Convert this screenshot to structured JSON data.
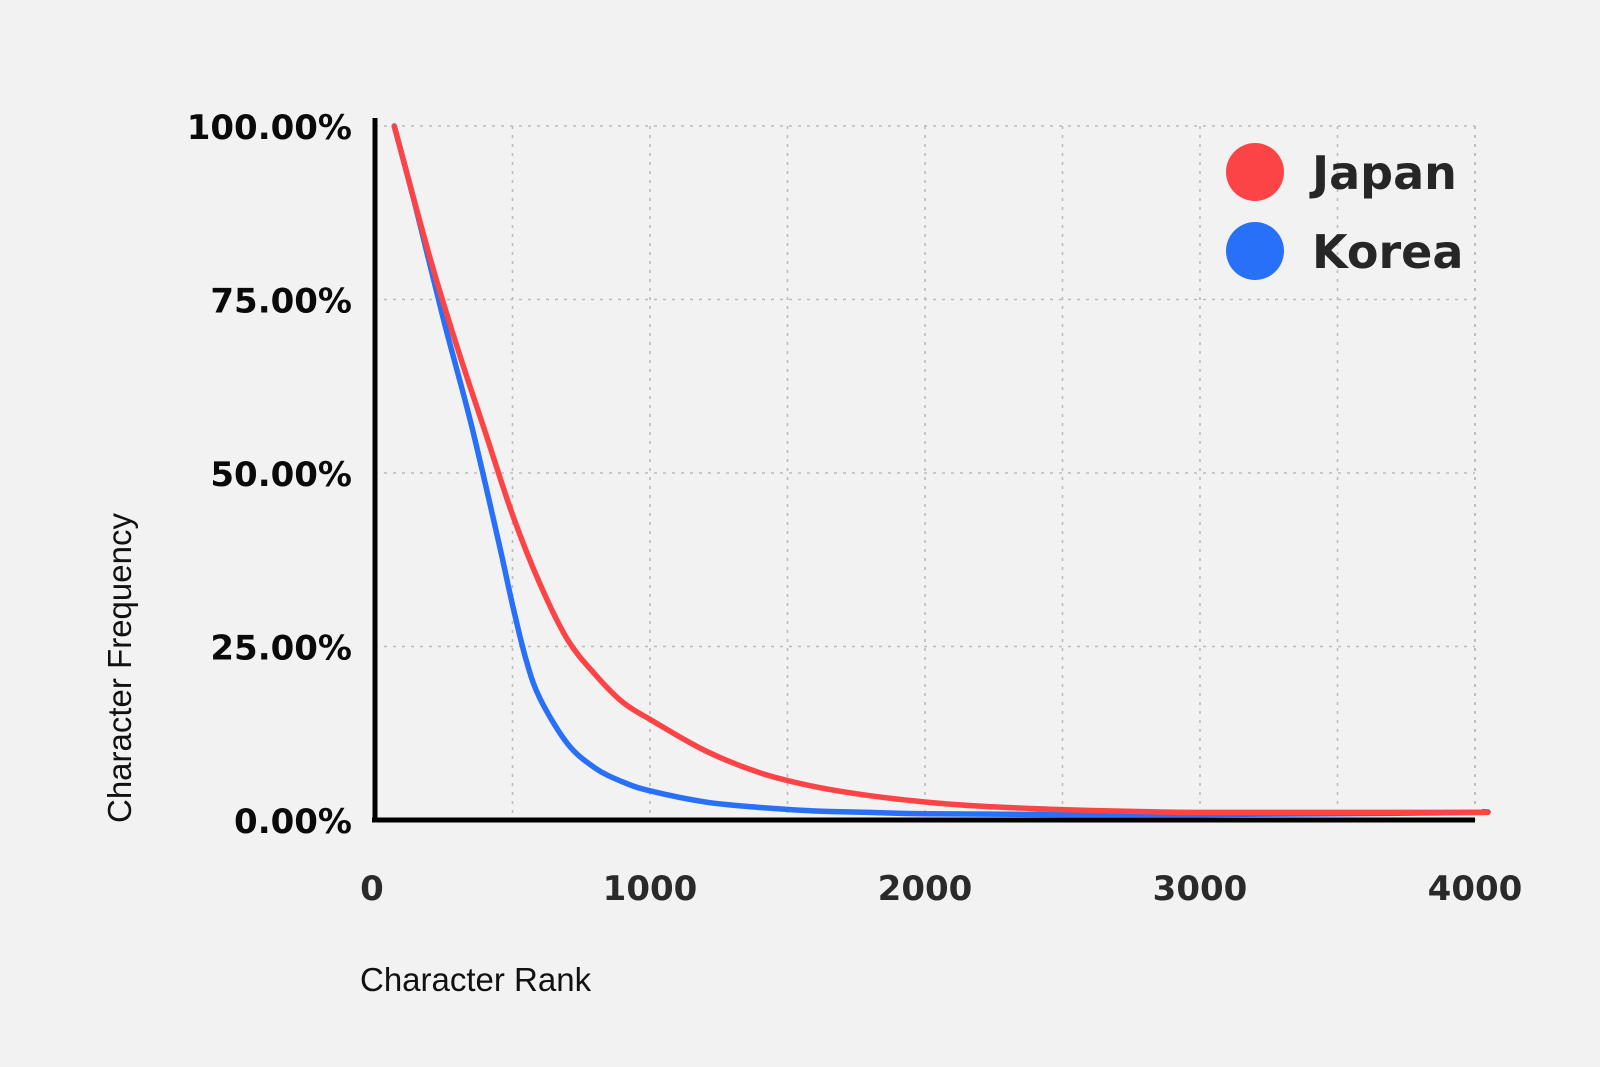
{
  "chart_data": {
    "type": "line",
    "title": "",
    "xlabel": "Character Rank",
    "ylabel": "Character Frequency",
    "xlim": [
      0,
      4000
    ],
    "ylim": [
      0,
      100
    ],
    "x_ticks": [
      "0",
      "1000",
      "2000",
      "3000",
      "4000"
    ],
    "y_ticks": [
      "0.00%",
      "25.00%",
      "50.00%",
      "75.00%",
      "100.00%"
    ],
    "grid": true,
    "legend_position": "top-right",
    "series": [
      {
        "name": "Japan",
        "color": "#fc4447",
        "x": [
          70,
          200,
          300,
          400,
          500,
          600,
          700,
          800,
          900,
          1000,
          1200,
          1400,
          1600,
          1800,
          2000,
          2200,
          2500,
          2800,
          3000,
          3500,
          4000,
          4030
        ],
        "y": [
          100,
          81,
          68,
          56,
          44,
          34,
          26,
          21,
          17,
          14.5,
          10,
          6.8,
          4.8,
          3.5,
          2.6,
          2,
          1.5,
          1.2,
          1.1,
          1.1,
          1.1,
          1.1
        ]
      },
      {
        "name": "Korea",
        "color": "#2870f8",
        "x": [
          70,
          150,
          250,
          350,
          450,
          500,
          550,
          600,
          700,
          800,
          900,
          1000,
          1200,
          1400,
          1600,
          1800,
          2000,
          2500,
          3000,
          3500,
          4000,
          4030
        ],
        "y": [
          100,
          88,
          72,
          57,
          40,
          31,
          23,
          17.5,
          11,
          7.5,
          5.5,
          4.2,
          2.6,
          1.8,
          1.3,
          1.1,
          0.9,
          0.8,
          0.8,
          0.9,
          1.1,
          1.2
        ]
      }
    ]
  }
}
